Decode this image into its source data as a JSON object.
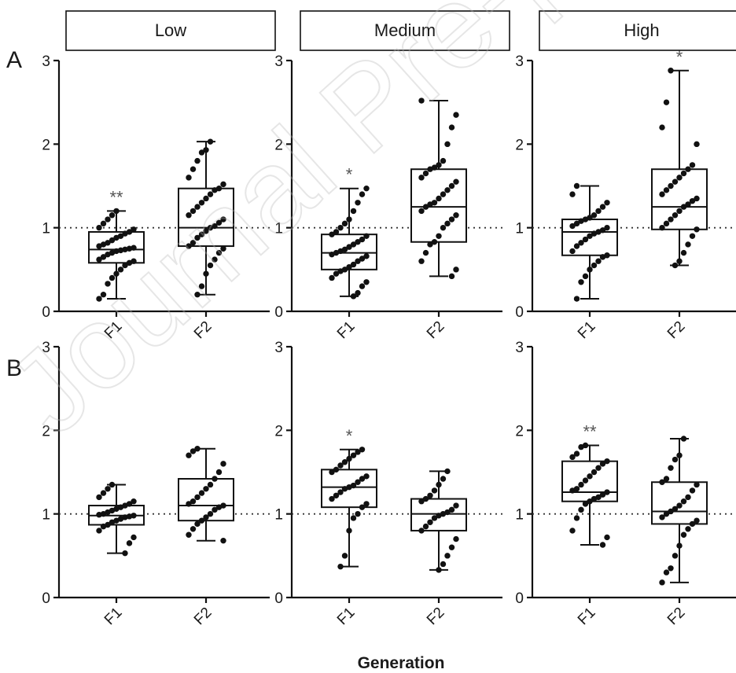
{
  "watermark": "Journal Pre-proof",
  "x_axis_title": "Generation",
  "column_headers": [
    "Low",
    "Medium",
    "High"
  ],
  "row_labels": [
    "A",
    "B"
  ],
  "colors": {
    "ink": "#111111",
    "reference_line": "#333333",
    "star": "#555555"
  },
  "chart_data": [
    {
      "type": "box",
      "row": "A",
      "column": "Low",
      "categories": [
        "F1",
        "F2"
      ],
      "ylim": [
        0,
        3
      ],
      "yticks": [
        0,
        1,
        2,
        3
      ],
      "reference_line": 1,
      "boxes": [
        {
          "category": "F1",
          "min": 0.15,
          "q1": 0.58,
          "median": 0.74,
          "q3": 0.95,
          "max": 1.2,
          "annotation": "**",
          "points": [
            0.15,
            0.2,
            0.33,
            0.4,
            0.45,
            0.5,
            0.55,
            0.58,
            0.6,
            0.62,
            0.65,
            0.68,
            0.7,
            0.72,
            0.73,
            0.74,
            0.75,
            0.76,
            0.78,
            0.8,
            0.82,
            0.85,
            0.88,
            0.9,
            0.93,
            0.95,
            0.98,
            1.0,
            1.05,
            1.1,
            1.15,
            1.2
          ]
        },
        {
          "category": "F2",
          "min": 0.2,
          "q1": 0.78,
          "median": 1.0,
          "q3": 1.47,
          "max": 2.03,
          "annotation": "",
          "points": [
            0.2,
            0.3,
            0.45,
            0.55,
            0.62,
            0.7,
            0.75,
            0.78,
            0.82,
            0.88,
            0.92,
            0.96,
            1.0,
            1.02,
            1.06,
            1.1,
            1.15,
            1.2,
            1.25,
            1.3,
            1.35,
            1.4,
            1.45,
            1.47,
            1.52,
            1.6,
            1.7,
            1.8,
            1.9,
            1.93,
            2.03
          ]
        }
      ]
    },
    {
      "type": "box",
      "row": "A",
      "column": "Medium",
      "categories": [
        "F1",
        "F2"
      ],
      "ylim": [
        0,
        3
      ],
      "yticks": [
        0,
        1,
        2,
        3
      ],
      "reference_line": 1,
      "boxes": [
        {
          "category": "F1",
          "min": 0.18,
          "q1": 0.5,
          "median": 0.7,
          "q3": 0.92,
          "max": 1.47,
          "annotation": "*",
          "points": [
            0.18,
            0.22,
            0.3,
            0.35,
            0.4,
            0.45,
            0.48,
            0.5,
            0.53,
            0.56,
            0.6,
            0.63,
            0.66,
            0.68,
            0.7,
            0.72,
            0.74,
            0.77,
            0.8,
            0.83,
            0.86,
            0.9,
            0.92,
            0.95,
            1.0,
            1.05,
            1.1,
            1.2,
            1.3,
            1.4,
            1.47
          ]
        },
        {
          "category": "F2",
          "min": 0.42,
          "q1": 0.83,
          "median": 1.25,
          "q3": 1.7,
          "max": 2.52,
          "annotation": "",
          "points": [
            0.42,
            0.5,
            0.6,
            0.7,
            0.8,
            0.83,
            0.9,
            1.0,
            1.05,
            1.1,
            1.15,
            1.2,
            1.25,
            1.28,
            1.3,
            1.35,
            1.4,
            1.45,
            1.5,
            1.55,
            1.6,
            1.65,
            1.7,
            1.72,
            1.75,
            1.8,
            2.0,
            2.2,
            2.35,
            2.52
          ]
        }
      ]
    },
    {
      "type": "box",
      "row": "A",
      "column": "High",
      "categories": [
        "F1",
        "F2"
      ],
      "ylim": [
        0,
        3
      ],
      "yticks": [
        0,
        1,
        2,
        3
      ],
      "reference_line": 1,
      "boxes": [
        {
          "category": "F1",
          "min": 0.15,
          "q1": 0.67,
          "median": 0.95,
          "q3": 1.1,
          "max": 1.5,
          "annotation": "",
          "points": [
            0.15,
            0.35,
            0.42,
            0.5,
            0.55,
            0.6,
            0.65,
            0.67,
            0.72,
            0.78,
            0.82,
            0.86,
            0.9,
            0.93,
            0.95,
            0.97,
            1.0,
            1.02,
            1.05,
            1.08,
            1.1,
            1.12,
            1.15,
            1.2,
            1.25,
            1.3,
            1.4,
            1.5
          ]
        },
        {
          "category": "F2",
          "min": 0.55,
          "q1": 0.98,
          "median": 1.25,
          "q3": 1.7,
          "max": 2.88,
          "annotation": "*",
          "points": [
            0.55,
            0.6,
            0.7,
            0.8,
            0.9,
            0.98,
            1.0,
            1.05,
            1.1,
            1.15,
            1.2,
            1.25,
            1.28,
            1.32,
            1.35,
            1.4,
            1.45,
            1.5,
            1.55,
            1.6,
            1.65,
            1.7,
            1.75,
            2.0,
            2.2,
            2.5,
            2.88
          ]
        }
      ]
    },
    {
      "type": "box",
      "row": "B",
      "column": "Low",
      "categories": [
        "F1",
        "F2"
      ],
      "ylim": [
        0,
        3
      ],
      "yticks": [
        0,
        1,
        2,
        3
      ],
      "reference_line": 1,
      "boxes": [
        {
          "category": "F1",
          "min": 0.53,
          "q1": 0.87,
          "median": 0.98,
          "q3": 1.1,
          "max": 1.35,
          "annotation": "",
          "points": [
            0.53,
            0.65,
            0.72,
            0.8,
            0.85,
            0.87,
            0.9,
            0.92,
            0.94,
            0.96,
            0.97,
            0.98,
            0.99,
            1.0,
            1.02,
            1.04,
            1.06,
            1.08,
            1.1,
            1.12,
            1.15,
            1.2,
            1.25,
            1.3,
            1.35
          ]
        },
        {
          "category": "F2",
          "min": 0.68,
          "q1": 0.92,
          "median": 1.1,
          "q3": 1.42,
          "max": 1.78,
          "annotation": "",
          "points": [
            0.68,
            0.75,
            0.82,
            0.88,
            0.92,
            0.96,
            1.0,
            1.05,
            1.08,
            1.1,
            1.12,
            1.15,
            1.2,
            1.25,
            1.3,
            1.35,
            1.42,
            1.5,
            1.6,
            1.7,
            1.75,
            1.78
          ]
        }
      ]
    },
    {
      "type": "box",
      "row": "B",
      "column": "Medium",
      "categories": [
        "F1",
        "F2"
      ],
      "ylim": [
        0,
        3
      ],
      "yticks": [
        0,
        1,
        2,
        3
      ],
      "reference_line": 1,
      "boxes": [
        {
          "category": "F1",
          "min": 0.37,
          "q1": 1.08,
          "median": 1.32,
          "q3": 1.53,
          "max": 1.77,
          "annotation": "*",
          "points": [
            0.37,
            0.5,
            0.8,
            0.95,
            1.0,
            1.08,
            1.12,
            1.18,
            1.22,
            1.26,
            1.3,
            1.32,
            1.34,
            1.38,
            1.42,
            1.45,
            1.5,
            1.53,
            1.58,
            1.62,
            1.66,
            1.7,
            1.74,
            1.77
          ]
        },
        {
          "category": "F2",
          "min": 0.33,
          "q1": 0.8,
          "median": 1.0,
          "q3": 1.18,
          "max": 1.51,
          "annotation": "",
          "points": [
            0.33,
            0.4,
            0.5,
            0.6,
            0.7,
            0.8,
            0.85,
            0.9,
            0.95,
            0.98,
            1.0,
            1.02,
            1.05,
            1.1,
            1.15,
            1.18,
            1.22,
            1.28,
            1.35,
            1.42,
            1.51
          ]
        }
      ]
    },
    {
      "type": "box",
      "row": "B",
      "column": "High",
      "categories": [
        "F1",
        "F2"
      ],
      "ylim": [
        0,
        3
      ],
      "yticks": [
        0,
        1,
        2,
        3
      ],
      "reference_line": 1,
      "boxes": [
        {
          "category": "F1",
          "min": 0.63,
          "q1": 1.15,
          "median": 1.26,
          "q3": 1.63,
          "max": 1.82,
          "annotation": "**",
          "points": [
            0.63,
            0.72,
            0.8,
            0.95,
            1.05,
            1.12,
            1.15,
            1.18,
            1.2,
            1.23,
            1.26,
            1.28,
            1.3,
            1.35,
            1.4,
            1.45,
            1.5,
            1.55,
            1.6,
            1.63,
            1.68,
            1.72,
            1.8,
            1.82
          ]
        },
        {
          "category": "F2",
          "min": 0.18,
          "q1": 0.88,
          "median": 1.03,
          "q3": 1.38,
          "max": 1.9,
          "annotation": "",
          "points": [
            0.18,
            0.3,
            0.35,
            0.5,
            0.62,
            0.75,
            0.82,
            0.88,
            0.92,
            0.96,
            1.0,
            1.03,
            1.06,
            1.1,
            1.15,
            1.2,
            1.28,
            1.35,
            1.38,
            1.42,
            1.55,
            1.65,
            1.7,
            1.9
          ]
        }
      ]
    }
  ]
}
